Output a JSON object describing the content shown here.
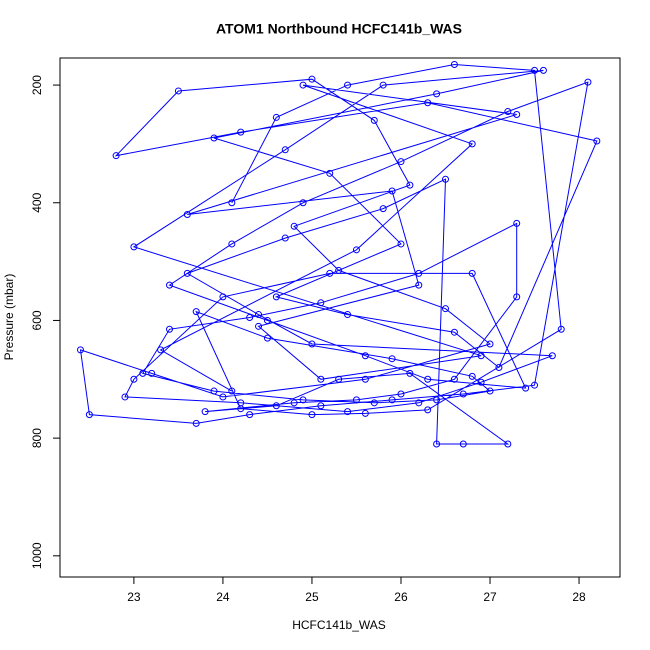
{
  "chart_data": {
    "type": "line",
    "title": "ATOM1 Northbound HCFC141b_WAS",
    "x_label": "HCFC141b_WAS",
    "y_label": "Pressure (mbar)",
    "color": "#0000ff",
    "markers": true,
    "y_reversed": true,
    "xlim": [
      22.17,
      28.46
    ],
    "xticks": [
      23,
      24,
      25,
      26,
      27,
      28
    ],
    "ylim": [
      154,
      1036
    ],
    "yticks": [
      200,
      400,
      600,
      800,
      1000
    ],
    "x": [
      24.1,
      23.3,
      25.5,
      26.8,
      24.9,
      27.3,
      23.6,
      25.9,
      26.2,
      24.4,
      25.1,
      26.9,
      23.0,
      24.7,
      25.8,
      27.6,
      26.4,
      23.9,
      25.2,
      26.0,
      24.6,
      25.4,
      26.6,
      27.1,
      28.2,
      26.3,
      24.2,
      22.8,
      23.5,
      25.0,
      25.7,
      26.1,
      24.8,
      25.3,
      26.5,
      27.0,
      25.6,
      24.0,
      23.2,
      22.4,
      22.5,
      23.7,
      24.3,
      25.1,
      25.9,
      26.7,
      27.5,
      28.1,
      27.2,
      26.0,
      24.9,
      24.1,
      23.4,
      24.5,
      25.6,
      26.3,
      27.4,
      26.8,
      25.2,
      24.0,
      23.0,
      22.9,
      24.2,
      25.4,
      26.2,
      26.9,
      27.7,
      25.0,
      24.4,
      23.6,
      24.7,
      25.8,
      26.5,
      26.4,
      26.7,
      27.2,
      26.1,
      25.3,
      24.6,
      23.8,
      24.8,
      25.5,
      26.0,
      26.6,
      27.3,
      27.3,
      26.2,
      25.1,
      24.3,
      23.4,
      23.1,
      23.9,
      24.9,
      25.7,
      26.4,
      27.0,
      26.8,
      25.9,
      24.5,
      23.7,
      24.2,
      25.0,
      25.6,
      26.3,
      27.8,
      27.5,
      26.6,
      25.4,
      24.6,
      24.1
    ],
    "values": [
      720,
      650,
      480,
      300,
      200,
      250,
      420,
      380,
      540,
      610,
      700,
      660,
      475,
      310,
      200,
      175,
      215,
      290,
      350,
      470,
      560,
      590,
      620,
      680,
      295,
      230,
      280,
      320,
      210,
      190,
      260,
      370,
      440,
      515,
      580,
      640,
      700,
      730,
      690,
      650,
      760,
      775,
      760,
      745,
      735,
      725,
      710,
      195,
      245,
      330,
      400,
      470,
      540,
      600,
      660,
      700,
      715,
      520,
      520,
      560,
      700,
      730,
      740,
      755,
      740,
      705,
      660,
      640,
      590,
      520,
      460,
      410,
      360,
      810,
      810,
      810,
      690,
      700,
      745,
      755,
      740,
      735,
      725,
      700,
      560,
      435,
      520,
      570,
      595,
      615,
      690,
      720,
      735,
      740,
      735,
      720,
      695,
      665,
      630,
      585,
      750,
      760,
      758,
      752,
      615,
      175,
      165,
      200,
      255,
      400
    ]
  }
}
